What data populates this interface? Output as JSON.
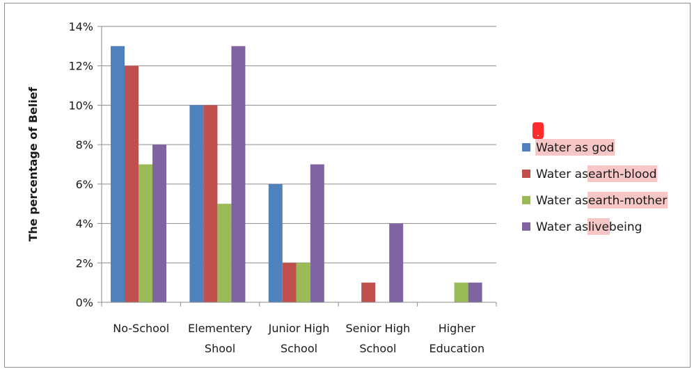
{
  "chart_data": {
    "type": "bar",
    "title": "",
    "xlabel": "",
    "ylabel": "The percentage of Belief",
    "ylim": [
      0,
      14
    ],
    "yticks": [
      "0%",
      "2%",
      "4%",
      "6%",
      "8%",
      "10%",
      "12%",
      "14%"
    ],
    "grid": true,
    "legend_position": "right",
    "categories": [
      [
        "No-School"
      ],
      [
        "Elementery",
        "Shool"
      ],
      [
        "Junior High",
        "School"
      ],
      [
        "Senior High",
        "School"
      ],
      [
        "Higher",
        "Education"
      ]
    ],
    "series": [
      {
        "name": "Water as god",
        "name_parts": [
          {
            "t": "Water as god",
            "hl": true
          }
        ],
        "color": "#4f81bd",
        "values": [
          13,
          10,
          6,
          0,
          0
        ]
      },
      {
        "name": "Water as earth-blood",
        "name_parts": [
          {
            "t": "Water as ",
            "hl": false
          },
          {
            "t": "earth-blood",
            "hl": true
          }
        ],
        "color": "#c0504d",
        "values": [
          12,
          10,
          2,
          1,
          0
        ]
      },
      {
        "name": "Water as earth-mother",
        "name_parts": [
          {
            "t": "Water as ",
            "hl": false
          },
          {
            "t": "earth-mother",
            "hl": true
          }
        ],
        "color": "#9bbb59",
        "values": [
          7,
          5,
          2,
          0,
          1
        ]
      },
      {
        "name": "Water as live being",
        "name_parts": [
          {
            "t": "Water as ",
            "hl": false
          },
          {
            "t": "live",
            "hl": true
          },
          {
            "t": " being",
            "hl": false
          }
        ],
        "color": "#8064a2",
        "values": [
          8,
          13,
          7,
          4,
          1
        ]
      }
    ],
    "highlight_color": "#f7c6c6",
    "annotation_marker": {
      "text": ".",
      "color": "#ff2a2a"
    }
  }
}
